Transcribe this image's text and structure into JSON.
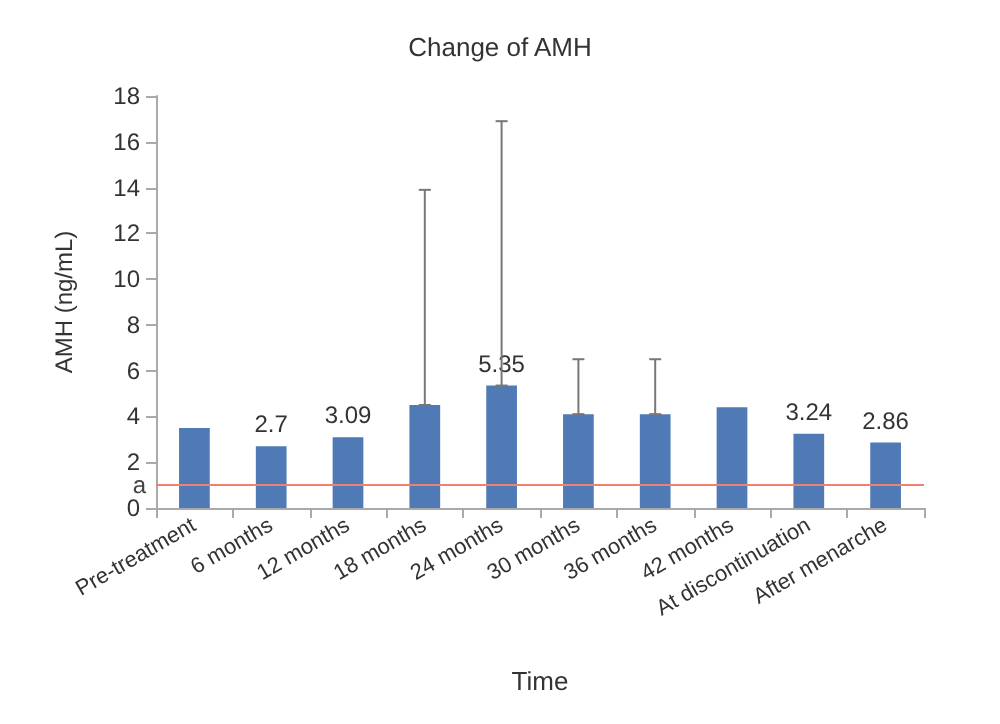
{
  "chart_data": {
    "type": "bar",
    "title": "Change of AMH",
    "xlabel": "Time",
    "ylabel": "AMH (ng/mL)",
    "categories": [
      "Pre-treatment",
      "6 months",
      "12 months",
      "18 months",
      "24 months",
      "30 months",
      "36 months",
      "42 months",
      "At discontinuation",
      "After menarche"
    ],
    "values": [
      3.5,
      2.7,
      3.09,
      4.5,
      5.35,
      4.1,
      4.1,
      4.4,
      3.24,
      2.86
    ],
    "value_labels": [
      null,
      "2.7",
      "3.09",
      null,
      "5.35",
      null,
      null,
      null,
      "3.24",
      "2.86"
    ],
    "errors": [
      null,
      null,
      null,
      [
        4.5,
        13.9
      ],
      [
        5.35,
        16.9
      ],
      [
        4.1,
        6.5
      ],
      [
        4.1,
        6.5
      ],
      null,
      null,
      null
    ],
    "color": "#4f7ab5",
    "ylim": [
      0,
      18
    ],
    "yticks": [
      0,
      2,
      4,
      6,
      8,
      10,
      12,
      14,
      16,
      18
    ],
    "grid": false,
    "ref_lines": [
      {
        "axis": "y",
        "value": 1,
        "label": "a",
        "color": "#f08070"
      }
    ]
  }
}
